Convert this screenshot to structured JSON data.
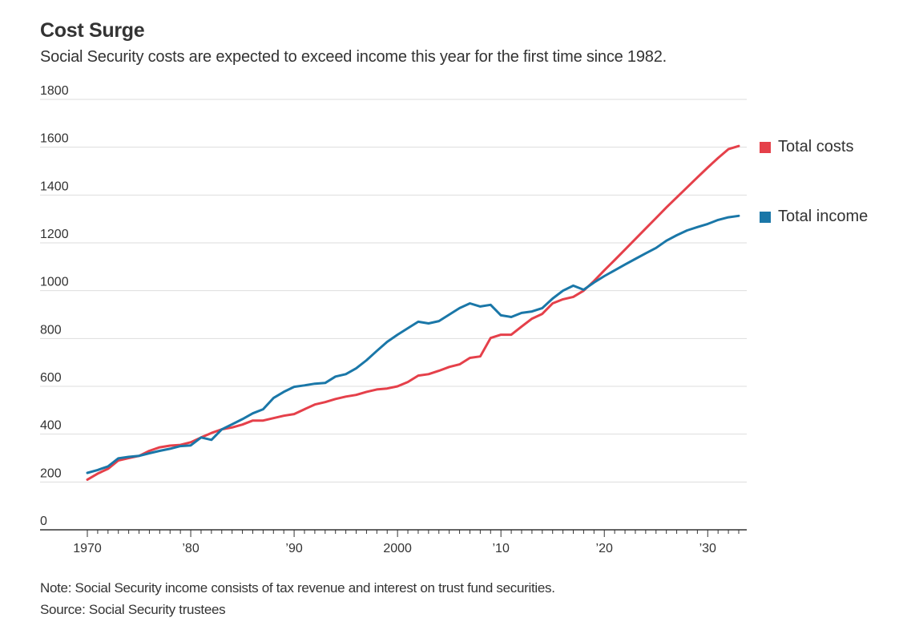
{
  "header": {
    "title": "Cost Surge",
    "subtitle": "Social Security costs are expected to exceed income this year for the first time since 1982."
  },
  "footer": {
    "note": "Note: Social Security income consists of tax revenue and interest on trust fund securities.",
    "source": "Source: Social Security trustees"
  },
  "chart_data": {
    "type": "line",
    "title": "Cost Surge",
    "subtitle": "Social Security costs are expected to exceed income this year for the first time since 1982.",
    "xlabel": "",
    "ylabel": "",
    "xlim": [
      1970,
      2033
    ],
    "ylim": [
      0,
      1800
    ],
    "grid": true,
    "legend_position": "right",
    "y_ticks": [
      0,
      200,
      400,
      600,
      800,
      1000,
      1200,
      1400,
      1600,
      1800
    ],
    "y_tick_labels": [
      "0",
      "200",
      "400",
      "600",
      "800",
      "1000",
      "1200",
      "1400",
      "1600",
      "1800"
    ],
    "x_ticks": [
      1970,
      1980,
      1990,
      2000,
      2010,
      2020,
      2030
    ],
    "x_tick_labels": [
      "1970",
      "’80",
      "’90",
      "2000",
      "’10",
      "’20",
      "’30"
    ],
    "x": [
      1970,
      1971,
      1972,
      1973,
      1974,
      1975,
      1976,
      1977,
      1978,
      1979,
      1980,
      1981,
      1982,
      1983,
      1984,
      1985,
      1986,
      1987,
      1988,
      1989,
      1990,
      1991,
      1992,
      1993,
      1994,
      1995,
      1996,
      1997,
      1998,
      1999,
      2000,
      2001,
      2002,
      2003,
      2004,
      2005,
      2006,
      2007,
      2008,
      2009,
      2010,
      2011,
      2012,
      2013,
      2014,
      2015,
      2016,
      2017,
      2018,
      2019,
      2020,
      2021,
      2022,
      2023,
      2024,
      2025,
      2026,
      2027,
      2028,
      2029,
      2030,
      2031,
      2032,
      2033
    ],
    "series": [
      {
        "name": "Total costs",
        "color": "#e5404a",
        "values": [
          210,
          235,
          255,
          290,
          300,
          309,
          330,
          345,
          352,
          355,
          366,
          386,
          405,
          420,
          428,
          440,
          457,
          457,
          467,
          477,
          484,
          504,
          524,
          534,
          547,
          557,
          564,
          577,
          587,
          591,
          600,
          618,
          645,
          651,
          665,
          681,
          692,
          719,
          725,
          802,
          816,
          816,
          850,
          883,
          903,
          947,
          964,
          974,
          1000,
          1040,
          1085,
          1128,
          1172,
          1216,
          1260,
          1304,
          1348,
          1390,
          1432,
          1474,
          1515,
          1555,
          1592,
          1605
        ]
      },
      {
        "name": "Total income",
        "color": "#1a77a8",
        "values": [
          238,
          250,
          265,
          299,
          305,
          309,
          320,
          330,
          339,
          350,
          353,
          386,
          376,
          420,
          441,
          463,
          487,
          504,
          551,
          577,
          598,
          604,
          611,
          614,
          641,
          651,
          675,
          709,
          748,
          786,
          816,
          843,
          870,
          863,
          873,
          900,
          927,
          947,
          934,
          941,
          897,
          890,
          907,
          913,
          927,
          967,
          1000,
          1021,
          1004,
          1034,
          1061,
          1085,
          1109,
          1133,
          1156,
          1179,
          1209,
          1232,
          1252,
          1266,
          1279,
          1296,
          1307,
          1313
        ]
      }
    ]
  }
}
